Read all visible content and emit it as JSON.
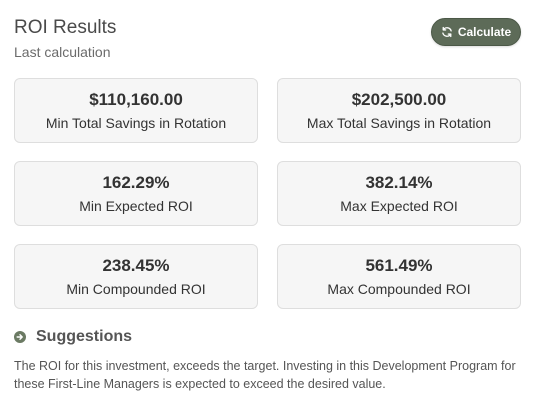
{
  "header": {
    "title": "ROI Results",
    "subtitle": "Last calculation"
  },
  "calculate_button": {
    "label": "Calculate",
    "icon": "refresh-icon"
  },
  "colors": {
    "button_bg": "#5d6b58",
    "card_bg": "#f6f6f6",
    "card_border": "#dedede"
  },
  "cards": [
    {
      "value": "$110,160.00",
      "label": "Min Total Savings in Rotation"
    },
    {
      "value": "$202,500.00",
      "label": "Max Total Savings in Rotation"
    },
    {
      "value": "162.29%",
      "label": "Min Expected ROI"
    },
    {
      "value": "382.14%",
      "label": "Max Expected ROI"
    },
    {
      "value": "238.45%",
      "label": "Min Compounded ROI"
    },
    {
      "value": "561.49%",
      "label": "Max Compounded ROI"
    }
  ],
  "suggestions": {
    "title": "Suggestions",
    "icon": "arrow-circle-right-icon",
    "text": "The ROI for this investment, exceeds the target. Investing in this Development Program for these First-Line Managers is expected to exceed the desired value."
  }
}
